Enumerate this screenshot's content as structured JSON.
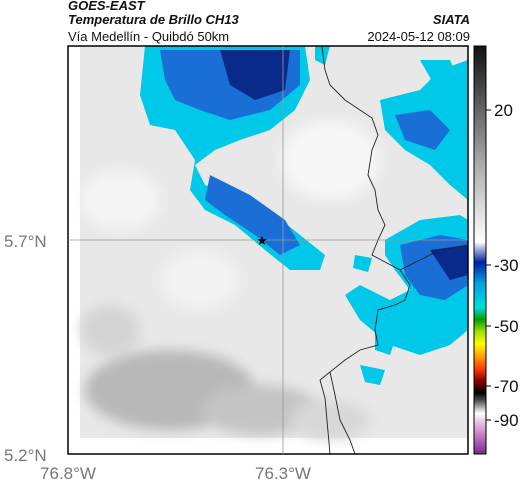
{
  "header": {
    "satellite": "GOES-EAST",
    "product": "Temperatura de Brillo CH13",
    "region": "Vía Medellín - Quibdó 50km",
    "agency": "SIATA",
    "datetime": "2024-05-12 08:09"
  },
  "axes": {
    "x_ticks": [
      "76.8°W",
      "76.3°W"
    ],
    "y_ticks": [
      "5.7°N",
      "5.2°N"
    ]
  },
  "colorbar": {
    "ticks": [
      "20",
      "-30",
      "-50",
      "-70",
      "-90"
    ]
  },
  "colors": {
    "cloud_cyan": "#00c8e8",
    "cloud_blue": "#1a6fd6",
    "cloud_dark": "#0a2a8a",
    "background_gray": "#e8e8e8"
  },
  "marker": {
    "symbol": "★"
  }
}
